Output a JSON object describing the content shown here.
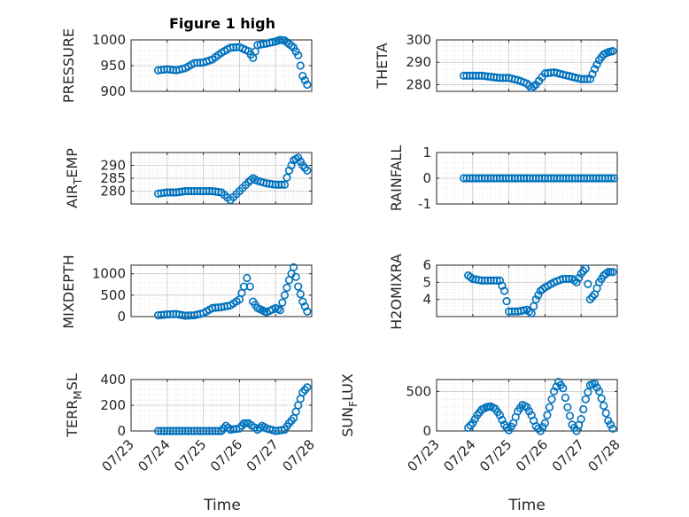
{
  "figure_title": "Figure 1 high",
  "x_axis_label": "Time",
  "colors": {
    "marker": "#0072BD",
    "axis": "#262626",
    "grid": "#d9d9d9"
  },
  "chart_data": [
    {
      "type": "scatter",
      "ylabel": "PRESSURE",
      "ylim": [
        900,
        1000
      ],
      "yticks": [
        900,
        950,
        1000
      ],
      "xlim": [
        "07/23",
        "07/28"
      ],
      "xticks": [
        "07/23",
        "07/24",
        "07/25",
        "07/26",
        "07/27",
        "07/28"
      ],
      "show_x_tick_labels": false,
      "points": [
        [
          "07/23 18:00",
          941
        ],
        [
          "07/24 00:00",
          943
        ],
        [
          "07/24 06:00",
          941
        ],
        [
          "07/24 12:00",
          945
        ],
        [
          "07/24 18:00",
          955
        ],
        [
          "07/25 00:00",
          956
        ],
        [
          "07/25 06:00",
          962
        ],
        [
          "07/25 12:00",
          975
        ],
        [
          "07/25 18:00",
          985
        ],
        [
          "07/26 00:00",
          986
        ],
        [
          "07/26 06:00",
          978
        ],
        [
          "07/26 09:00",
          965
        ],
        [
          "07/26 12:00",
          990
        ],
        [
          "07/26 18:00",
          993
        ],
        [
          "07/27 00:00",
          997
        ],
        [
          "07/27 03:00",
          1000
        ],
        [
          "07/27 06:00",
          999
        ],
        [
          "07/27 09:00",
          992
        ],
        [
          "07/27 12:00",
          985
        ],
        [
          "07/27 15:00",
          970
        ],
        [
          "07/27 18:00",
          930
        ],
        [
          "07/27 21:00",
          913
        ]
      ]
    },
    {
      "type": "scatter",
      "ylabel": "THETA",
      "ylim": [
        277,
        300
      ],
      "yticks": [
        280,
        290,
        300
      ],
      "xlim": [
        "07/23",
        "07/28"
      ],
      "xticks": [
        "07/23",
        "07/24",
        "07/25",
        "07/26",
        "07/27",
        "07/28"
      ],
      "show_x_tick_labels": false,
      "points": [
        [
          "07/23 18:00",
          284
        ],
        [
          "07/24 00:00",
          284
        ],
        [
          "07/24 06:00",
          284
        ],
        [
          "07/24 12:00",
          283.5
        ],
        [
          "07/24 18:00",
          283
        ],
        [
          "07/25 00:00",
          283
        ],
        [
          "07/25 06:00",
          282
        ],
        [
          "07/25 12:00",
          280.5
        ],
        [
          "07/25 15:00",
          278.5
        ],
        [
          "07/25 18:00",
          280
        ],
        [
          "07/26 00:00",
          285
        ],
        [
          "07/26 06:00",
          285.5
        ],
        [
          "07/26 12:00",
          284.5
        ],
        [
          "07/26 18:00",
          283.5
        ],
        [
          "07/27 00:00",
          282.5
        ],
        [
          "07/27 06:00",
          282.5
        ],
        [
          "07/27 09:00",
          287
        ],
        [
          "07/27 12:00",
          291
        ],
        [
          "07/27 15:00",
          293.5
        ],
        [
          "07/27 18:00",
          294.5
        ],
        [
          "07/27 21:00",
          295
        ]
      ]
    },
    {
      "type": "scatter",
      "ylabel": "AIR_TEMP",
      "ylim": [
        275,
        295
      ],
      "yticks": [
        280,
        285,
        290
      ],
      "xlim": [
        "07/23",
        "07/28"
      ],
      "xticks": [
        "07/23",
        "07/24",
        "07/25",
        "07/26",
        "07/27",
        "07/28"
      ],
      "show_x_tick_labels": false,
      "points": [
        [
          "07/23 18:00",
          279
        ],
        [
          "07/24 00:00",
          279.5
        ],
        [
          "07/24 06:00",
          279.5
        ],
        [
          "07/24 12:00",
          280
        ],
        [
          "07/24 18:00",
          280
        ],
        [
          "07/25 00:00",
          280
        ],
        [
          "07/25 06:00",
          280
        ],
        [
          "07/25 12:00",
          279.5
        ],
        [
          "07/25 18:00",
          276.5
        ],
        [
          "07/26 00:00",
          280
        ],
        [
          "07/26 06:00",
          283.5
        ],
        [
          "07/26 09:00",
          285
        ],
        [
          "07/26 12:00",
          284
        ],
        [
          "07/26 18:00",
          283
        ],
        [
          "07/27 00:00",
          282.5
        ],
        [
          "07/27 06:00",
          282.5
        ],
        [
          "07/27 09:00",
          288
        ],
        [
          "07/27 12:00",
          292
        ],
        [
          "07/27 15:00",
          293
        ],
        [
          "07/27 18:00",
          290
        ],
        [
          "07/27 21:00",
          288
        ]
      ]
    },
    {
      "type": "scatter",
      "ylabel": "RAINFALL",
      "ylim": [
        -1,
        1
      ],
      "yticks": [
        -1,
        0,
        1
      ],
      "xlim": [
        "07/23",
        "07/28"
      ],
      "xticks": [
        "07/23",
        "07/24",
        "07/25",
        "07/26",
        "07/27",
        "07/28"
      ],
      "show_x_tick_labels": false,
      "points": [
        [
          "07/23 18:00",
          0
        ],
        [
          "07/24 00:00",
          0
        ],
        [
          "07/24 06:00",
          0
        ],
        [
          "07/24 12:00",
          0
        ],
        [
          "07/24 18:00",
          0
        ],
        [
          "07/25 00:00",
          0
        ],
        [
          "07/25 06:00",
          0
        ],
        [
          "07/25 12:00",
          0
        ],
        [
          "07/25 18:00",
          0
        ],
        [
          "07/26 00:00",
          0
        ],
        [
          "07/26 06:00",
          0
        ],
        [
          "07/26 12:00",
          0
        ],
        [
          "07/26 18:00",
          0
        ],
        [
          "07/27 00:00",
          0
        ],
        [
          "07/27 06:00",
          0
        ],
        [
          "07/27 12:00",
          0
        ],
        [
          "07/27 18:00",
          0
        ],
        [
          "07/27 22:00",
          0
        ]
      ]
    },
    {
      "type": "scatter",
      "ylabel": "MIXDEPTH",
      "ylim": [
        0,
        1200
      ],
      "yticks": [
        0,
        500,
        1000
      ],
      "xlim": [
        "07/23",
        "07/28"
      ],
      "xticks": [
        "07/23",
        "07/24",
        "07/25",
        "07/26",
        "07/27",
        "07/28"
      ],
      "show_x_tick_labels": false,
      "points": [
        [
          "07/23 18:00",
          30
        ],
        [
          "07/24 00:00",
          50
        ],
        [
          "07/24 06:00",
          60
        ],
        [
          "07/24 12:00",
          20
        ],
        [
          "07/24 18:00",
          30
        ],
        [
          "07/25 00:00",
          80
        ],
        [
          "07/25 06:00",
          200
        ],
        [
          "07/25 12:00",
          220
        ],
        [
          "07/25 18:00",
          260
        ],
        [
          "07/26 00:00",
          400
        ],
        [
          "07/26 03:00",
          700
        ],
        [
          "07/26 05:00",
          900
        ],
        [
          "07/26 07:00",
          700
        ],
        [
          "07/26 09:00",
          350
        ],
        [
          "07/26 12:00",
          200
        ],
        [
          "07/26 15:00",
          150
        ],
        [
          "07/26 18:00",
          100
        ],
        [
          "07/27 00:00",
          200
        ],
        [
          "07/27 03:00",
          150
        ],
        [
          "07/27 06:00",
          500
        ],
        [
          "07/27 09:00",
          850
        ],
        [
          "07/27 12:00",
          1150
        ],
        [
          "07/27 15:00",
          700
        ],
        [
          "07/27 18:00",
          350
        ],
        [
          "07/27 21:00",
          120
        ]
      ]
    },
    {
      "type": "scatter",
      "ylabel": "H2OMIXRA",
      "ylim": [
        3,
        6
      ],
      "yticks": [
        4,
        5,
        6
      ],
      "xlim": [
        "07/23",
        "07/28"
      ],
      "xticks": [
        "07/23",
        "07/24",
        "07/25",
        "07/26",
        "07/27",
        "07/28"
      ],
      "show_x_tick_labels": false,
      "points": [
        [
          "07/23 21:00",
          5.4
        ],
        [
          "07/24 00:00",
          5.2
        ],
        [
          "07/24 06:00",
          5.1
        ],
        [
          "07/24 12:00",
          5.1
        ],
        [
          "07/24 18:00",
          5.1
        ],
        [
          "07/24 21:00",
          4.5
        ],
        [
          "07/25 00:00",
          3.3
        ],
        [
          "07/25 06:00",
          3.3
        ],
        [
          "07/25 12:00",
          3.4
        ],
        [
          "07/25 15:00",
          3.2
        ],
        [
          "07/25 18:00",
          4.0
        ],
        [
          "07/25 21:00",
          4.5
        ],
        [
          "07/26 00:00",
          4.7
        ],
        [
          "07/26 06:00",
          5.0
        ],
        [
          "07/26 12:00",
          5.2
        ],
        [
          "07/26 18:00",
          5.2
        ],
        [
          "07/26 21:00",
          5.0
        ],
        [
          "07/27 00:00",
          5.5
        ],
        [
          "07/27 03:00",
          5.8
        ],
        [
          "07/27 06:00",
          4.0
        ],
        [
          "07/27 09:00",
          4.3
        ],
        [
          "07/27 12:00",
          5.0
        ],
        [
          "07/27 15:00",
          5.4
        ],
        [
          "07/27 18:00",
          5.6
        ],
        [
          "07/27 21:00",
          5.6
        ]
      ]
    },
    {
      "type": "scatter",
      "ylabel": "TERR_MSL",
      "ylim": [
        0,
        400
      ],
      "yticks": [
        0,
        200,
        400
      ],
      "xlim": [
        "07/23",
        "07/28"
      ],
      "xticks": [
        "07/23",
        "07/24",
        "07/25",
        "07/26",
        "07/27",
        "07/28"
      ],
      "show_x_tick_labels": true,
      "points": [
        [
          "07/23 18:00",
          0
        ],
        [
          "07/24 00:00",
          0
        ],
        [
          "07/24 06:00",
          0
        ],
        [
          "07/24 12:00",
          0
        ],
        [
          "07/24 18:00",
          0
        ],
        [
          "07/25 00:00",
          0
        ],
        [
          "07/25 06:00",
          0
        ],
        [
          "07/25 12:00",
          0
        ],
        [
          "07/25 15:00",
          40
        ],
        [
          "07/25 18:00",
          10
        ],
        [
          "07/26 00:00",
          20
        ],
        [
          "07/26 03:00",
          60
        ],
        [
          "07/26 06:00",
          60
        ],
        [
          "07/26 12:00",
          10
        ],
        [
          "07/26 15:00",
          40
        ],
        [
          "07/26 18:00",
          20
        ],
        [
          "07/27 00:00",
          0
        ],
        [
          "07/27 06:00",
          10
        ],
        [
          "07/27 09:00",
          60
        ],
        [
          "07/27 12:00",
          100
        ],
        [
          "07/27 15:00",
          200
        ],
        [
          "07/27 18:00",
          300
        ],
        [
          "07/27 21:00",
          340
        ]
      ]
    },
    {
      "type": "scatter",
      "ylabel": "SUN_FLUX",
      "ylim": [
        0,
        650
      ],
      "yticks": [
        0,
        500
      ],
      "xlim": [
        "07/23",
        "07/28"
      ],
      "xticks": [
        "07/23",
        "07/24",
        "07/25",
        "07/26",
        "07/27",
        "07/28"
      ],
      "show_x_tick_labels": true,
      "points": [
        [
          "07/23 21:00",
          40
        ],
        [
          "07/24 00:00",
          100
        ],
        [
          "07/24 03:00",
          200
        ],
        [
          "07/24 06:00",
          270
        ],
        [
          "07/24 09:00",
          300
        ],
        [
          "07/24 12:00",
          310
        ],
        [
          "07/24 15:00",
          280
        ],
        [
          "07/24 18:00",
          200
        ],
        [
          "07/24 21:00",
          80
        ],
        [
          "07/25 00:00",
          10
        ],
        [
          "07/25 03:00",
          100
        ],
        [
          "07/25 06:00",
          250
        ],
        [
          "07/25 09:00",
          330
        ],
        [
          "07/25 12:00",
          300
        ],
        [
          "07/25 15:00",
          200
        ],
        [
          "07/25 18:00",
          60
        ],
        [
          "07/25 21:00",
          0
        ],
        [
          "07/26 00:00",
          100
        ],
        [
          "07/26 03:00",
          300
        ],
        [
          "07/26 06:00",
          500
        ],
        [
          "07/26 09:00",
          620
        ],
        [
          "07/26 12:00",
          540
        ],
        [
          "07/26 15:00",
          300
        ],
        [
          "07/26 18:00",
          80
        ],
        [
          "07/26 21:00",
          0
        ],
        [
          "07/27 00:00",
          150
        ],
        [
          "07/27 03:00",
          400
        ],
        [
          "07/27 06:00",
          580
        ],
        [
          "07/27 09:00",
          600
        ],
        [
          "07/27 12:00",
          500
        ],
        [
          "07/27 15:00",
          320
        ],
        [
          "07/27 18:00",
          130
        ],
        [
          "07/27 21:00",
          30
        ]
      ]
    }
  ]
}
